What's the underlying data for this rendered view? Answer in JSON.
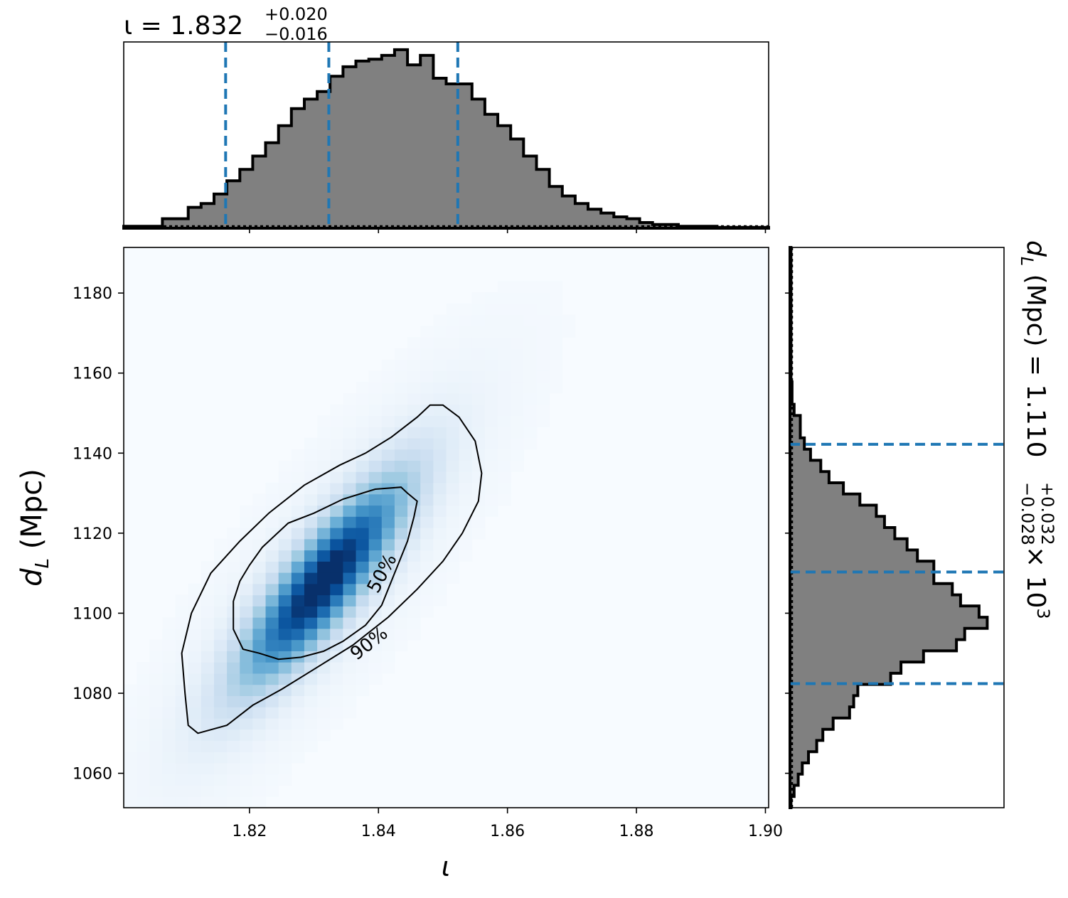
{
  "chart_data": {
    "type": "corner",
    "parameters": [
      {
        "symbol": "ι",
        "axis_label": "ι",
        "median": 1.832,
        "plus": "+0.020",
        "minus": "−0.016",
        "title_main": "ι = 1.832",
        "range": [
          1.8005,
          1.9005
        ],
        "ticks": [
          1.82,
          1.84,
          1.86,
          1.88,
          1.9
        ],
        "tick_labels": [
          "1.82",
          "1.84",
          "1.86",
          "1.88",
          "1.90"
        ],
        "quantile_lines": [
          1.8163,
          1.8323,
          1.8523
        ]
      },
      {
        "symbol": "d_L",
        "axis_label_main": "d",
        "axis_label_sub": "L",
        "axis_label_unit": " (Mpc)",
        "median": 1110,
        "plus": "+0.032",
        "minus": "−0.028",
        "title_main": " (Mpc) = 1.110",
        "title_exp": "× 10",
        "title_exp_power": "3",
        "range": [
          1051.4,
          1191.4
        ],
        "ticks": [
          1060,
          1080,
          1100,
          1120,
          1140,
          1160,
          1180
        ],
        "tick_labels": [
          "1060",
          "1080",
          "1100",
          "1120",
          "1140",
          "1160",
          "1180"
        ],
        "quantile_lines": [
          1082.4,
          1110.3,
          1142.2
        ]
      }
    ],
    "hist_iota": {
      "edges_start": 1.8005,
      "bin_width": 0.002,
      "counts": [
        1,
        1,
        1,
        1,
        1,
        1,
        1,
        1,
        1,
        1,
        1,
        1,
        1,
        1,
        1,
        1,
        1,
        1,
        1,
        1,
        1,
        1,
        1,
        1,
        1,
        1,
        1,
        1,
        1,
        1,
        1,
        1,
        1,
        1,
        1,
        1,
        1,
        1,
        1,
        1,
        1,
        1,
        1,
        1,
        1,
        1,
        1,
        1,
        1,
        1
      ],
      "heights": [
        0.01,
        0.01,
        0.01,
        0.05,
        0.05,
        0.11,
        0.13,
        0.18,
        0.25,
        0.31,
        0.38,
        0.45,
        0.54,
        0.63,
        0.68,
        0.72,
        0.8,
        0.85,
        0.88,
        0.89,
        0.91,
        0.94,
        0.86,
        0.91,
        0.79,
        0.76,
        0.76,
        0.68,
        0.6,
        0.54,
        0.47,
        0.38,
        0.31,
        0.22,
        0.17,
        0.13,
        0.1,
        0.08,
        0.06,
        0.05,
        0.03,
        0.02,
        0.02,
        0.01,
        0.01,
        0.01,
        0.005,
        0.005,
        0.005,
        0.005
      ]
    },
    "hist_dL": {
      "edges_start": 1051.4,
      "bin_width": 2.8,
      "heights": [
        0.005,
        0.02,
        0.04,
        0.06,
        0.09,
        0.13,
        0.16,
        0.21,
        0.29,
        0.31,
        0.33,
        0.49,
        0.54,
        0.65,
        0.81,
        0.85,
        0.96,
        0.92,
        0.83,
        0.79,
        0.7,
        0.7,
        0.62,
        0.57,
        0.51,
        0.46,
        0.42,
        0.34,
        0.26,
        0.19,
        0.15,
        0.1,
        0.07,
        0.05,
        0.05,
        0.02,
        0.01,
        0.01,
        0.005,
        0.005,
        0.005,
        0.005,
        0.005,
        0.005,
        0.005,
        0.005,
        0.005,
        0.005,
        0.005,
        0.005
      ]
    },
    "density_2d": {
      "center": [
        1.8315,
        1108
      ],
      "sigma_iota": 0.0085,
      "sigma_dL": 17,
      "correlation": 0.85,
      "colormap": [
        "#f7fbff",
        "#deebf7",
        "#c6dbef",
        "#9ecae1",
        "#6baed6",
        "#4292c6",
        "#2171b5",
        "#08519c",
        "#08306b"
      ]
    },
    "contours": [
      {
        "label": "50%",
        "label_pos": [
          1.8405,
          1110
        ],
        "label_angle": -62,
        "points": [
          [
            1.8445,
            1130
          ],
          [
            1.8435,
            1131.5
          ],
          [
            1.8395,
            1131
          ],
          [
            1.8345,
            1128.5
          ],
          [
            1.83,
            1125
          ],
          [
            1.826,
            1122.5
          ],
          [
            1.822,
            1116.5
          ],
          [
            1.82,
            1112
          ],
          [
            1.8185,
            1108
          ],
          [
            1.8175,
            1103
          ],
          [
            1.8175,
            1096
          ],
          [
            1.819,
            1091
          ],
          [
            1.8215,
            1090
          ],
          [
            1.8245,
            1088.5
          ],
          [
            1.828,
            1089
          ],
          [
            1.8315,
            1090.5
          ],
          [
            1.8345,
            1093
          ],
          [
            1.838,
            1097
          ],
          [
            1.8405,
            1102
          ],
          [
            1.8425,
            1110
          ],
          [
            1.8445,
            1118
          ],
          [
            1.8455,
            1124
          ],
          [
            1.846,
            1128
          ]
        ]
      },
      {
        "label": "90%",
        "label_pos": [
          1.8385,
          1092.5
        ],
        "label_angle": -38,
        "points": [
          [
            1.85,
            1152
          ],
          [
            1.8525,
            1149
          ],
          [
            1.855,
            1143
          ],
          [
            1.856,
            1135
          ],
          [
            1.8555,
            1128
          ],
          [
            1.853,
            1120
          ],
          [
            1.85,
            1113
          ],
          [
            1.846,
            1106
          ],
          [
            1.8415,
            1099
          ],
          [
            1.836,
            1092
          ],
          [
            1.83,
            1086
          ],
          [
            1.825,
            1081
          ],
          [
            1.8205,
            1077
          ],
          [
            1.8165,
            1072
          ],
          [
            1.812,
            1070
          ],
          [
            1.8105,
            1072
          ],
          [
            1.81,
            1080
          ],
          [
            1.8095,
            1090
          ],
          [
            1.811,
            1100
          ],
          [
            1.814,
            1110
          ],
          [
            1.8185,
            1118
          ],
          [
            1.823,
            1125
          ],
          [
            1.8285,
            1132
          ],
          [
            1.834,
            1137
          ],
          [
            1.838,
            1140
          ],
          [
            1.842,
            1144
          ],
          [
            1.846,
            1149
          ],
          [
            1.848,
            1152
          ]
        ]
      }
    ]
  }
}
